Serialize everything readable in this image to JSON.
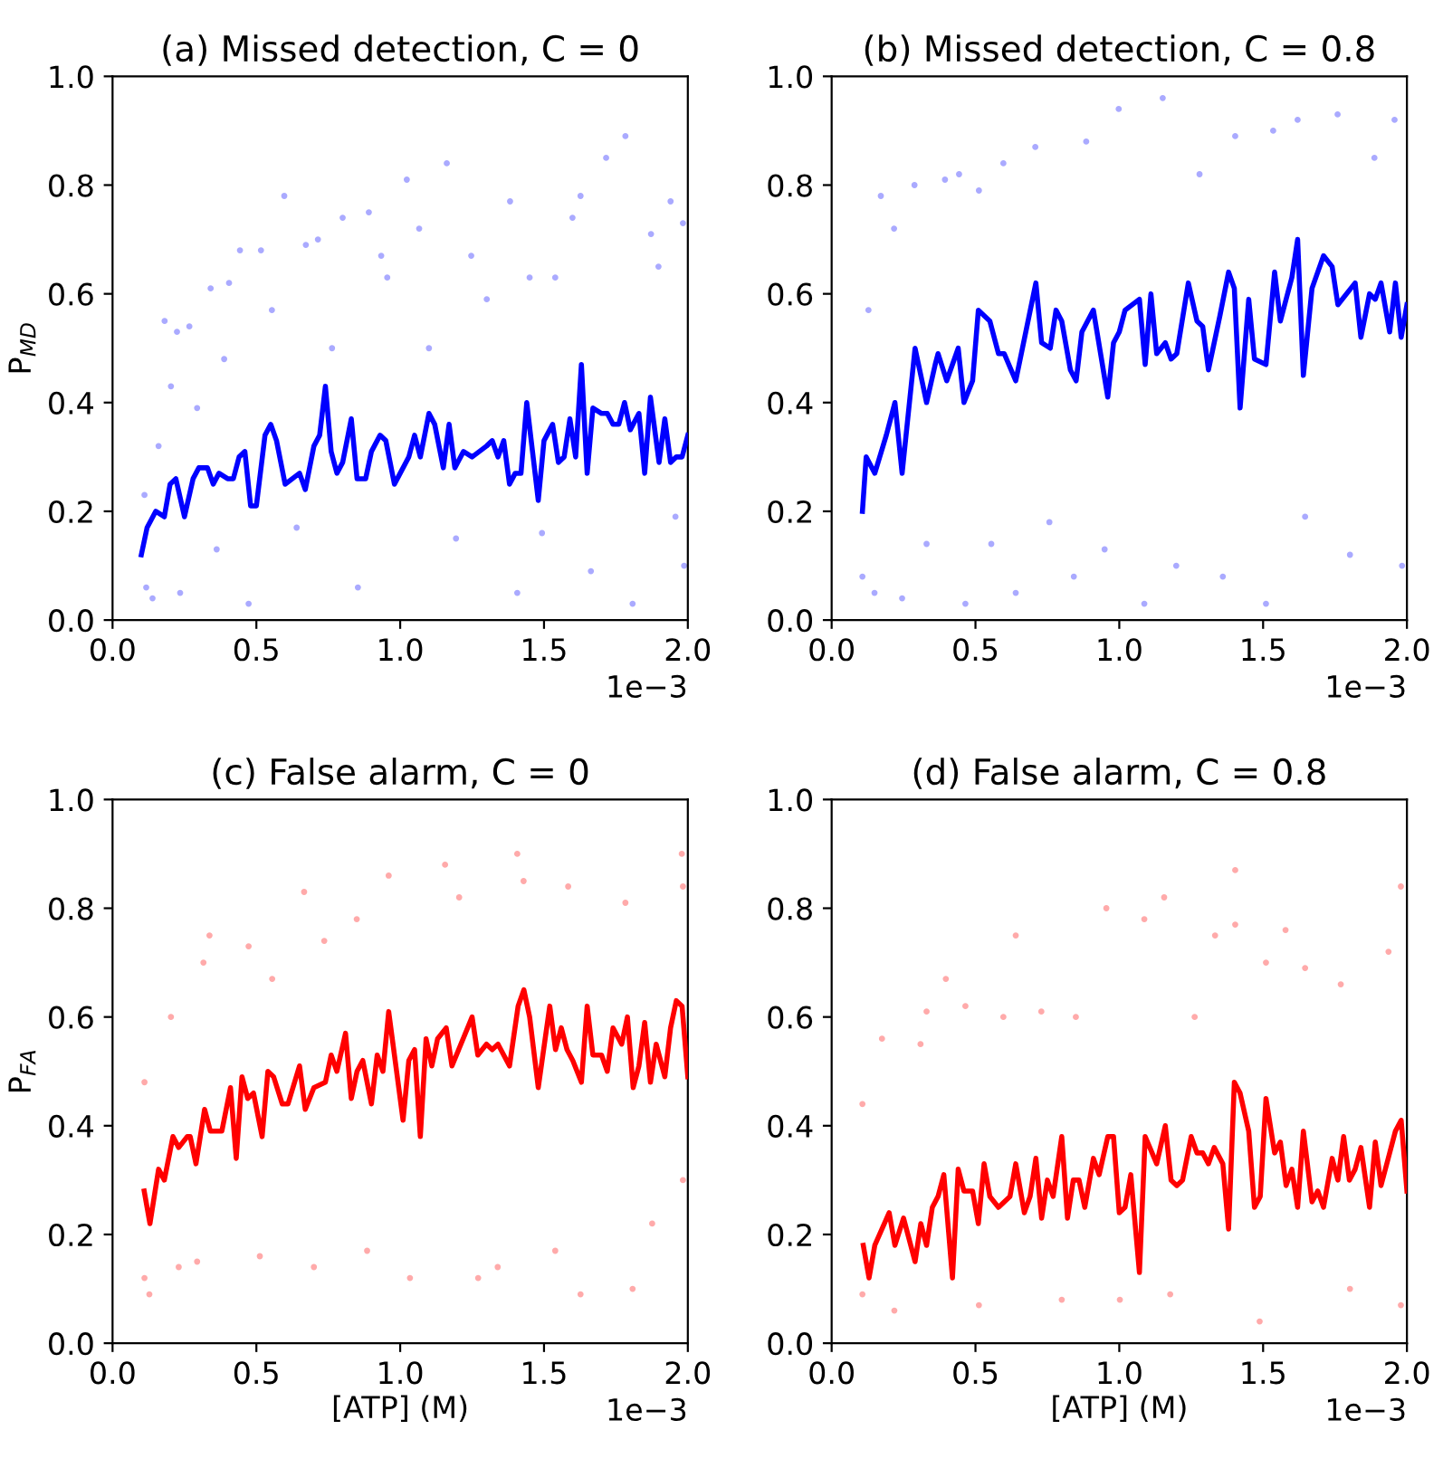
{
  "chart_data": [
    {
      "type": "line",
      "title": "(a) Missed detection, C = 0",
      "ylabel": "P$_{MD}$",
      "xlim": [
        0,
        2
      ],
      "ylim": [
        0,
        1
      ],
      "xticks": [
        {
          "value": 0,
          "label": "0.0"
        },
        {
          "value": 0.5,
          "label": "0.5"
        },
        {
          "value": 1,
          "label": "1.0"
        },
        {
          "value": 1.5,
          "label": "1.5"
        },
        {
          "value": 2,
          "label": "2.0"
        }
      ],
      "yticks": [
        {
          "value": 0,
          "label": "0.0"
        },
        {
          "value": 0.2,
          "label": "0.2"
        },
        {
          "value": 0.4,
          "label": "0.4"
        },
        {
          "value": 0.6,
          "label": "0.6"
        },
        {
          "value": 0.8,
          "label": "0.8"
        },
        {
          "value": 1,
          "label": "1.0"
        }
      ],
      "annotations": [
        "1e−3"
      ],
      "grid": false,
      "series": [
        {
          "type": "scatter",
          "color": "#aaaaff",
          "marker": "circle",
          "x": [
            0.111,
            0.117,
            0.139,
            0.16,
            0.181,
            0.203,
            0.224,
            0.235,
            0.267,
            0.294,
            0.341,
            0.362,
            0.388,
            0.405,
            0.443,
            0.473,
            0.516,
            0.554,
            0.597,
            0.64,
            0.672,
            0.714,
            0.763,
            0.8,
            0.853,
            0.891,
            0.934,
            0.955,
            1.023,
            1.066,
            1.1,
            1.162,
            1.194,
            1.247,
            1.301,
            1.382,
            1.407,
            1.45,
            1.493,
            1.539,
            1.599,
            1.627,
            1.663,
            1.716,
            1.783,
            1.808,
            1.872,
            1.898,
            1.94,
            1.957,
            1.983,
            1.987
          ],
          "values": [
            0.23,
            0.06,
            0.04,
            0.32,
            0.55,
            0.43,
            0.53,
            0.05,
            0.54,
            0.39,
            0.61,
            0.13,
            0.48,
            0.62,
            0.68,
            0.03,
            0.68,
            0.57,
            0.78,
            0.17,
            0.69,
            0.7,
            0.5,
            0.74,
            0.06,
            0.75,
            0.67,
            0.63,
            0.81,
            0.72,
            0.5,
            0.84,
            0.15,
            0.67,
            0.59,
            0.77,
            0.05,
            0.63,
            0.16,
            0.63,
            0.74,
            0.78,
            0.09,
            0.85,
            0.89,
            0.03,
            0.71,
            0.65,
            0.77,
            0.19,
            0.73,
            0.1
          ]
        },
        {
          "color": "#0000ff",
          "marker": "none",
          "x": [
            0.1,
            0.12,
            0.15,
            0.18,
            0.2,
            0.22,
            0.25,
            0.28,
            0.3,
            0.33,
            0.35,
            0.37,
            0.4,
            0.42,
            0.44,
            0.46,
            0.48,
            0.5,
            0.53,
            0.55,
            0.57,
            0.6,
            0.65,
            0.67,
            0.7,
            0.72,
            0.74,
            0.76,
            0.78,
            0.8,
            0.83,
            0.85,
            0.88,
            0.9,
            0.93,
            0.95,
            0.98,
            1.0,
            1.03,
            1.05,
            1.07,
            1.1,
            1.12,
            1.15,
            1.17,
            1.19,
            1.22,
            1.25,
            1.3,
            1.32,
            1.34,
            1.36,
            1.38,
            1.4,
            1.42,
            1.44,
            1.46,
            1.48,
            1.5,
            1.53,
            1.55,
            1.57,
            1.59,
            1.61,
            1.63,
            1.65,
            1.67,
            1.7,
            1.72,
            1.74,
            1.76,
            1.78,
            1.8,
            1.83,
            1.85,
            1.87,
            1.9,
            1.92,
            1.94,
            1.96,
            1.98,
            2.0
          ],
          "values": [
            0.12,
            0.17,
            0.2,
            0.19,
            0.25,
            0.26,
            0.19,
            0.26,
            0.28,
            0.28,
            0.25,
            0.27,
            0.26,
            0.26,
            0.3,
            0.31,
            0.21,
            0.21,
            0.34,
            0.36,
            0.33,
            0.25,
            0.27,
            0.24,
            0.32,
            0.34,
            0.43,
            0.31,
            0.27,
            0.29,
            0.37,
            0.26,
            0.26,
            0.31,
            0.34,
            0.33,
            0.25,
            0.27,
            0.3,
            0.34,
            0.3,
            0.38,
            0.36,
            0.28,
            0.36,
            0.28,
            0.31,
            0.3,
            0.32,
            0.33,
            0.3,
            0.33,
            0.25,
            0.27,
            0.27,
            0.4,
            0.31,
            0.22,
            0.33,
            0.36,
            0.29,
            0.3,
            0.37,
            0.3,
            0.47,
            0.27,
            0.39,
            0.38,
            0.38,
            0.36,
            0.36,
            0.4,
            0.35,
            0.38,
            0.27,
            0.41,
            0.29,
            0.37,
            0.29,
            0.3,
            0.3,
            0.34
          ]
        }
      ]
    },
    {
      "type": "line",
      "title": "(b) Missed detection, C = 0.8",
      "xlim": [
        0,
        2
      ],
      "ylim": [
        0,
        1
      ],
      "xticks": [
        {
          "value": 0,
          "label": "0.0"
        },
        {
          "value": 0.5,
          "label": "0.5"
        },
        {
          "value": 1,
          "label": "1.0"
        },
        {
          "value": 1.5,
          "label": "1.5"
        },
        {
          "value": 2,
          "label": "2.0"
        }
      ],
      "yticks": [
        {
          "value": 0,
          "label": "0.0"
        },
        {
          "value": 0.2,
          "label": "0.2"
        },
        {
          "value": 0.4,
          "label": "0.4"
        },
        {
          "value": 0.6,
          "label": "0.6"
        },
        {
          "value": 0.8,
          "label": "0.8"
        },
        {
          "value": 1,
          "label": "1.0"
        }
      ],
      "annotations": [
        "1e−3"
      ],
      "grid": false,
      "series": [
        {
          "type": "scatter",
          "color": "#aaaaff",
          "marker": "circle",
          "x": [
            0.107,
            0.128,
            0.149,
            0.171,
            0.217,
            0.245,
            0.288,
            0.33,
            0.394,
            0.443,
            0.465,
            0.512,
            0.555,
            0.597,
            0.64,
            0.708,
            0.757,
            0.842,
            0.885,
            0.949,
            0.998,
            1.087,
            1.151,
            1.198,
            1.279,
            1.36,
            1.403,
            1.51,
            1.535,
            1.62,
            1.646,
            1.759,
            1.802,
            1.887,
            1.957,
            1.983
          ],
          "values": [
            0.08,
            0.57,
            0.05,
            0.78,
            0.72,
            0.04,
            0.8,
            0.14,
            0.81,
            0.82,
            0.03,
            0.79,
            0.14,
            0.84,
            0.05,
            0.87,
            0.18,
            0.08,
            0.88,
            0.13,
            0.94,
            0.03,
            0.96,
            0.1,
            0.82,
            0.08,
            0.89,
            0.03,
            0.9,
            0.92,
            0.19,
            0.93,
            0.12,
            0.85,
            0.92,
            0.1
          ]
        },
        {
          "color": "#0000ff",
          "marker": "none",
          "x": [
            0.107,
            0.12,
            0.15,
            0.19,
            0.22,
            0.245,
            0.29,
            0.33,
            0.36,
            0.37,
            0.4,
            0.44,
            0.46,
            0.49,
            0.51,
            0.55,
            0.58,
            0.6,
            0.64,
            0.71,
            0.73,
            0.76,
            0.78,
            0.8,
            0.83,
            0.85,
            0.87,
            0.91,
            0.96,
            0.98,
            1.0,
            1.02,
            1.07,
            1.09,
            1.11,
            1.13,
            1.16,
            1.18,
            1.2,
            1.24,
            1.27,
            1.29,
            1.31,
            1.35,
            1.38,
            1.4,
            1.42,
            1.45,
            1.47,
            1.51,
            1.54,
            1.56,
            1.58,
            1.6,
            1.62,
            1.64,
            1.67,
            1.71,
            1.74,
            1.76,
            1.82,
            1.84,
            1.87,
            1.89,
            1.91,
            1.94,
            1.96,
            1.98,
            2.0
          ],
          "values": [
            0.2,
            0.3,
            0.27,
            0.34,
            0.4,
            0.27,
            0.5,
            0.4,
            0.47,
            0.49,
            0.44,
            0.5,
            0.4,
            0.44,
            0.57,
            0.55,
            0.49,
            0.49,
            0.44,
            0.62,
            0.51,
            0.5,
            0.57,
            0.55,
            0.46,
            0.44,
            0.53,
            0.57,
            0.41,
            0.51,
            0.53,
            0.57,
            0.59,
            0.47,
            0.6,
            0.49,
            0.51,
            0.48,
            0.49,
            0.62,
            0.55,
            0.54,
            0.46,
            0.56,
            0.64,
            0.61,
            0.39,
            0.59,
            0.48,
            0.47,
            0.64,
            0.55,
            0.59,
            0.63,
            0.7,
            0.45,
            0.61,
            0.67,
            0.65,
            0.58,
            0.62,
            0.52,
            0.6,
            0.59,
            0.62,
            0.53,
            0.62,
            0.52,
            0.58
          ]
        }
      ]
    },
    {
      "type": "line",
      "title": "(c) False alarm, C = 0",
      "xlabel": "[ATP] (M)",
      "ylabel": "P$_{FA}$",
      "xlim": [
        0,
        2
      ],
      "ylim": [
        0,
        1
      ],
      "xticks": [
        {
          "value": 0,
          "label": "0.0"
        },
        {
          "value": 0.5,
          "label": "0.5"
        },
        {
          "value": 1,
          "label": "1.0"
        },
        {
          "value": 1.5,
          "label": "1.5"
        },
        {
          "value": 2,
          "label": "2.0"
        }
      ],
      "yticks": [
        {
          "value": 0,
          "label": "0.0"
        },
        {
          "value": 0.2,
          "label": "0.2"
        },
        {
          "value": 0.4,
          "label": "0.4"
        },
        {
          "value": 0.6,
          "label": "0.6"
        },
        {
          "value": 0.8,
          "label": "0.8"
        },
        {
          "value": 1,
          "label": "1.0"
        }
      ],
      "annotations": [
        "1e−3"
      ],
      "grid": false,
      "series": [
        {
          "type": "scatter",
          "color": "#ffaaaa",
          "marker": "circle",
          "x": [
            0.111,
            0.111,
            0.128,
            0.203,
            0.23,
            0.294,
            0.316,
            0.337,
            0.473,
            0.512,
            0.555,
            0.666,
            0.7,
            0.736,
            0.849,
            0.885,
            0.96,
            1.034,
            1.156,
            1.205,
            1.271,
            1.339,
            1.407,
            1.429,
            1.539,
            1.584,
            1.627,
            1.783,
            1.808,
            1.876,
            1.979,
            1.983,
            1.983
          ],
          "values": [
            0.12,
            0.48,
            0.09,
            0.6,
            0.14,
            0.15,
            0.7,
            0.75,
            0.73,
            0.16,
            0.67,
            0.83,
            0.14,
            0.74,
            0.78,
            0.17,
            0.86,
            0.12,
            0.88,
            0.82,
            0.12,
            0.14,
            0.9,
            0.85,
            0.17,
            0.84,
            0.09,
            0.81,
            0.1,
            0.22,
            0.9,
            0.84,
            0.3
          ]
        },
        {
          "color": "#ff0000",
          "marker": "none",
          "x": [
            0.11,
            0.13,
            0.16,
            0.18,
            0.21,
            0.23,
            0.26,
            0.27,
            0.29,
            0.32,
            0.34,
            0.38,
            0.41,
            0.43,
            0.45,
            0.47,
            0.49,
            0.52,
            0.54,
            0.56,
            0.59,
            0.61,
            0.65,
            0.67,
            0.7,
            0.74,
            0.76,
            0.78,
            0.81,
            0.83,
            0.85,
            0.87,
            0.9,
            0.92,
            0.94,
            0.96,
            1.01,
            1.03,
            1.05,
            1.07,
            1.09,
            1.11,
            1.13,
            1.16,
            1.18,
            1.25,
            1.27,
            1.3,
            1.32,
            1.34,
            1.38,
            1.41,
            1.43,
            1.45,
            1.48,
            1.52,
            1.54,
            1.56,
            1.58,
            1.6,
            1.63,
            1.65,
            1.67,
            1.7,
            1.72,
            1.74,
            1.77,
            1.79,
            1.81,
            1.83,
            1.85,
            1.87,
            1.89,
            1.92,
            1.94,
            1.96,
            1.98,
            2.0
          ],
          "values": [
            0.28,
            0.22,
            0.32,
            0.3,
            0.38,
            0.36,
            0.38,
            0.38,
            0.33,
            0.43,
            0.39,
            0.39,
            0.47,
            0.34,
            0.49,
            0.45,
            0.46,
            0.38,
            0.5,
            0.49,
            0.44,
            0.44,
            0.51,
            0.43,
            0.47,
            0.48,
            0.53,
            0.5,
            0.57,
            0.45,
            0.5,
            0.52,
            0.44,
            0.53,
            0.5,
            0.61,
            0.41,
            0.52,
            0.54,
            0.38,
            0.56,
            0.51,
            0.56,
            0.58,
            0.51,
            0.6,
            0.53,
            0.55,
            0.54,
            0.55,
            0.51,
            0.62,
            0.65,
            0.6,
            0.47,
            0.62,
            0.54,
            0.58,
            0.54,
            0.52,
            0.48,
            0.62,
            0.53,
            0.53,
            0.5,
            0.58,
            0.55,
            0.6,
            0.47,
            0.51,
            0.59,
            0.48,
            0.55,
            0.49,
            0.58,
            0.63,
            0.62,
            0.49
          ]
        }
      ]
    },
    {
      "type": "line",
      "title": "(d) False alarm, C = 0.8",
      "xlabel": "[ATP] (M)",
      "xlim": [
        0,
        2
      ],
      "ylim": [
        0,
        1
      ],
      "xticks": [
        {
          "value": 0,
          "label": "0.0"
        },
        {
          "value": 0.5,
          "label": "0.5"
        },
        {
          "value": 1,
          "label": "1.0"
        },
        {
          "value": 1.5,
          "label": "1.5"
        },
        {
          "value": 2,
          "label": "2.0"
        }
      ],
      "yticks": [
        {
          "value": 0,
          "label": "0.0"
        },
        {
          "value": 0.2,
          "label": "0.2"
        },
        {
          "value": 0.4,
          "label": "0.4"
        },
        {
          "value": 0.6,
          "label": "0.6"
        },
        {
          "value": 0.8,
          "label": "0.8"
        },
        {
          "value": 1,
          "label": "1.0"
        }
      ],
      "annotations": [
        "1e−3"
      ],
      "grid": false,
      "series": [
        {
          "type": "scatter",
          "color": "#ffaaaa",
          "marker": "circle",
          "x": [
            0.107,
            0.107,
            0.175,
            0.218,
            0.309,
            0.33,
            0.397,
            0.465,
            0.512,
            0.597,
            0.64,
            0.729,
            0.8,
            0.849,
            0.955,
            1.002,
            1.087,
            1.156,
            1.177,
            1.262,
            1.333,
            1.403,
            1.403,
            1.488,
            1.51,
            1.578,
            1.646,
            1.77,
            1.802,
            1.936,
            1.979,
            1.979
          ],
          "values": [
            0.44,
            0.09,
            0.56,
            0.06,
            0.55,
            0.61,
            0.67,
            0.62,
            0.07,
            0.6,
            0.75,
            0.61,
            0.08,
            0.6,
            0.8,
            0.08,
            0.78,
            0.82,
            0.09,
            0.6,
            0.75,
            0.87,
            0.77,
            0.04,
            0.7,
            0.76,
            0.69,
            0.66,
            0.1,
            0.72,
            0.84,
            0.07
          ]
        },
        {
          "color": "#ff0000",
          "marker": "none",
          "x": [
            0.11,
            0.13,
            0.15,
            0.2,
            0.22,
            0.25,
            0.26,
            0.29,
            0.31,
            0.33,
            0.35,
            0.37,
            0.39,
            0.42,
            0.44,
            0.46,
            0.49,
            0.51,
            0.53,
            0.55,
            0.58,
            0.62,
            0.64,
            0.67,
            0.69,
            0.71,
            0.73,
            0.75,
            0.77,
            0.8,
            0.82,
            0.84,
            0.86,
            0.88,
            0.91,
            0.93,
            0.96,
            0.98,
            1.0,
            1.02,
            1.04,
            1.07,
            1.09,
            1.13,
            1.16,
            1.18,
            1.2,
            1.22,
            1.25,
            1.27,
            1.29,
            1.31,
            1.33,
            1.36,
            1.38,
            1.4,
            1.42,
            1.45,
            1.47,
            1.49,
            1.51,
            1.54,
            1.56,
            1.58,
            1.6,
            1.62,
            1.64,
            1.67,
            1.69,
            1.71,
            1.74,
            1.76,
            1.78,
            1.8,
            1.82,
            1.84,
            1.87,
            1.89,
            1.91,
            1.94,
            1.96,
            1.98,
            2.0
          ],
          "values": [
            0.18,
            0.12,
            0.18,
            0.24,
            0.18,
            0.23,
            0.21,
            0.15,
            0.22,
            0.18,
            0.25,
            0.27,
            0.31,
            0.12,
            0.32,
            0.28,
            0.28,
            0.22,
            0.33,
            0.27,
            0.25,
            0.27,
            0.33,
            0.24,
            0.27,
            0.34,
            0.23,
            0.3,
            0.27,
            0.38,
            0.23,
            0.3,
            0.3,
            0.25,
            0.34,
            0.31,
            0.38,
            0.38,
            0.24,
            0.25,
            0.31,
            0.13,
            0.38,
            0.33,
            0.4,
            0.3,
            0.29,
            0.3,
            0.38,
            0.35,
            0.35,
            0.33,
            0.36,
            0.33,
            0.21,
            0.48,
            0.46,
            0.39,
            0.25,
            0.27,
            0.45,
            0.35,
            0.37,
            0.29,
            0.32,
            0.25,
            0.39,
            0.26,
            0.28,
            0.25,
            0.34,
            0.3,
            0.38,
            0.3,
            0.32,
            0.36,
            0.25,
            0.37,
            0.29,
            0.35,
            0.39,
            0.41,
            0.28
          ]
        }
      ]
    }
  ]
}
